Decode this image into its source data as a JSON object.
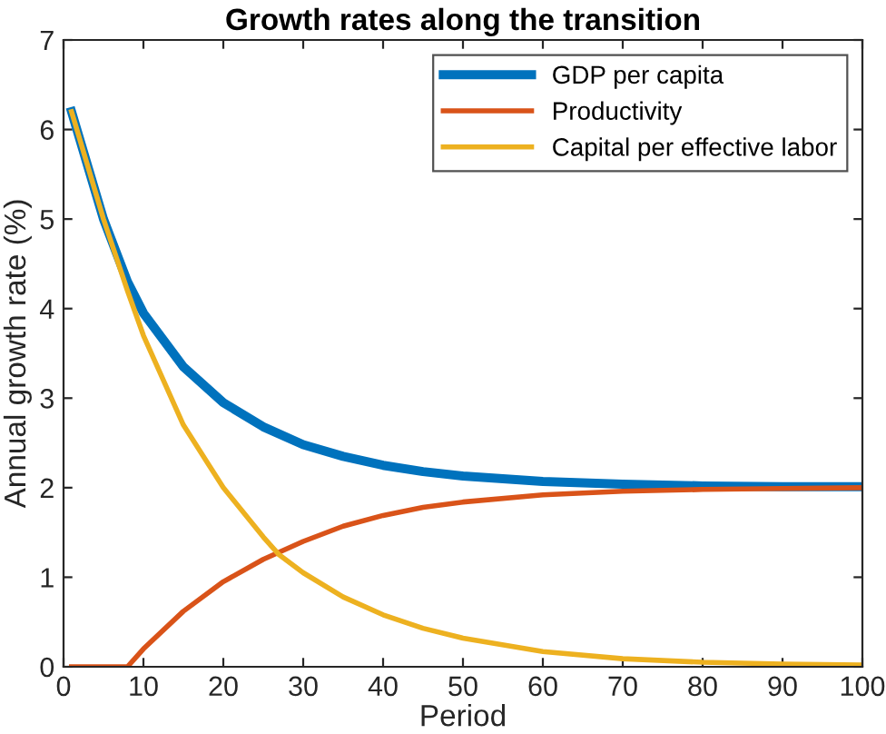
{
  "chart_data": {
    "type": "line",
    "title": "Growth rates along the transition",
    "xlabel": "Period",
    "ylabel": "Annual growth rate (%)",
    "xlim": [
      0,
      100
    ],
    "ylim": [
      0,
      7
    ],
    "xticks": [
      0,
      10,
      20,
      30,
      40,
      50,
      60,
      70,
      80,
      90,
      100
    ],
    "yticks": [
      0,
      1,
      2,
      3,
      4,
      5,
      6,
      7
    ],
    "grid": false,
    "legend": "top right",
    "marker": "none",
    "line_style": "solid",
    "series": [
      {
        "name": "GDP per capita",
        "color": "#0072bd",
        "x": [
          1,
          5,
          8,
          10,
          15,
          20,
          25,
          30,
          35,
          40,
          45,
          50,
          60,
          70,
          80,
          90,
          100
        ],
        "values": [
          6.2,
          5.0,
          4.3,
          3.95,
          3.35,
          2.95,
          2.68,
          2.48,
          2.35,
          2.25,
          2.18,
          2.13,
          2.07,
          2.04,
          2.02,
          2.01,
          2.01
        ]
      },
      {
        "name": "Productivity",
        "color": "#d95319",
        "x": [
          1,
          8,
          10,
          15,
          20,
          25,
          30,
          35,
          40,
          45,
          50,
          60,
          70,
          80,
          90,
          100
        ],
        "values": [
          0,
          0,
          0.2,
          0.62,
          0.95,
          1.2,
          1.4,
          1.57,
          1.69,
          1.78,
          1.84,
          1.92,
          1.96,
          1.98,
          1.99,
          2.0
        ]
      },
      {
        "name": "Capital per effective labor",
        "color": "#edb120",
        "x": [
          1,
          5,
          8,
          10,
          15,
          20,
          25,
          27,
          30,
          35,
          40,
          45,
          50,
          60,
          70,
          80,
          90,
          100
        ],
        "values": [
          6.2,
          5.0,
          4.2,
          3.7,
          2.7,
          2.0,
          1.45,
          1.25,
          1.05,
          0.78,
          0.58,
          0.43,
          0.32,
          0.17,
          0.09,
          0.05,
          0.03,
          0.02
        ]
      }
    ]
  }
}
